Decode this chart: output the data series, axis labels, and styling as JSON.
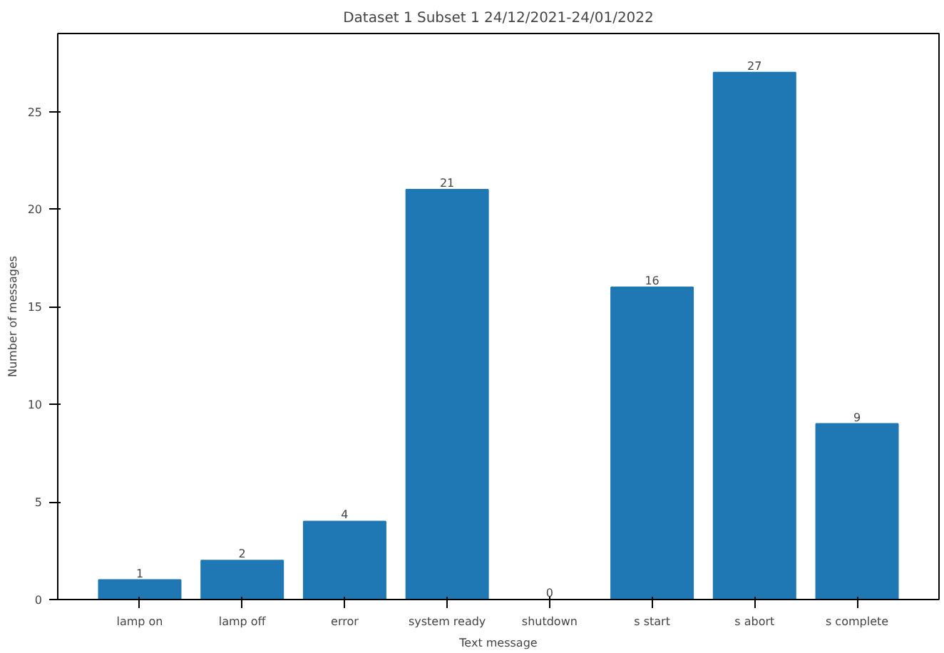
{
  "chart_data": {
    "type": "bar",
    "title": "Dataset 1 Subset 1 24/12/2021-24/01/2022",
    "xlabel": "Text message",
    "ylabel": "Number of messages",
    "categories": [
      "lamp on",
      "lamp off",
      "error",
      "system ready",
      "shutdown",
      "s start",
      "s abort",
      "s complete"
    ],
    "values": [
      1,
      2,
      4,
      21,
      0,
      16,
      27,
      9
    ],
    "color": "#1f77b4",
    "data_labels": true,
    "ylim": [
      0,
      29
    ],
    "yticks": [
      0,
      5,
      10,
      15,
      20,
      25
    ],
    "grid": false
  }
}
